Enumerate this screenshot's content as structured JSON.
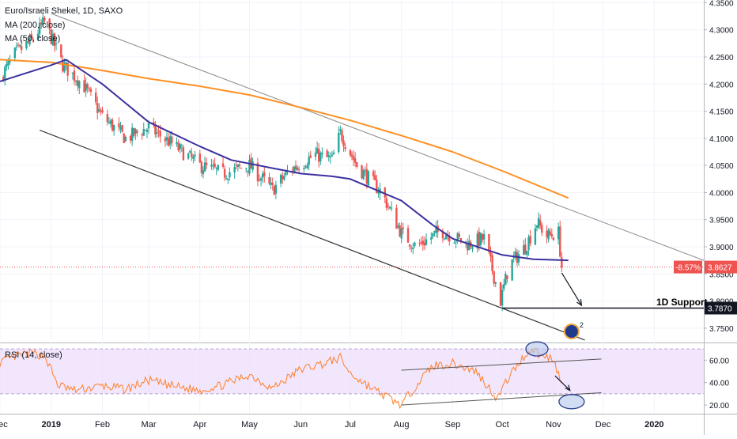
{
  "legend": {
    "title": "Euro/Israeli Shekel, 1D, SAXO",
    "ma200": "MA (200, close)",
    "ma50": "MA (50, close)"
  },
  "rsi_legend": "RSI (14, close)",
  "annotations": {
    "support_label": "1D Support",
    "support_value": "3.7870",
    "change_label": "-8.57%",
    "price_label": "3.8627",
    "badge_count": "2"
  },
  "colors": {
    "up": "#26a69a",
    "down": "#ef5350",
    "ma200": "#ff8f22",
    "ma50": "#3c32a0",
    "rsi": "#ff7f2a",
    "rsi_band": "#ecdcfb",
    "channel": "#555555",
    "price_label_bg": "#ef5350",
    "support_label_bg": "#131722"
  },
  "chart_data": [
    {
      "type": "candlestick",
      "title": "Euro/Israeli Shekel, 1D, SAXO",
      "y_axis_ticks": [
        "3.7500",
        "3.8000",
        "3.8500",
        "3.9000",
        "3.9500",
        "4.0000",
        "4.0500",
        "4.1000",
        "4.1500",
        "4.2000",
        "4.2500",
        "4.3000",
        "4.3500"
      ],
      "ylim": [
        3.725,
        4.355
      ],
      "x_axis_ticks": [
        "Dec",
        "2019",
        "Feb",
        "Mar",
        "Apr",
        "May",
        "Jun",
        "Jul",
        "Aug",
        "Sep",
        "Oct",
        "Nov",
        "Dec",
        "2020"
      ],
      "x_axis_tick_dates": [
        "2018-12-01",
        "2019-01-01",
        "2019-02-01",
        "2019-03-01",
        "2019-04-01",
        "2019-05-01",
        "2019-06-01",
        "2019-07-01",
        "2019-08-01",
        "2019-09-01",
        "2019-10-01",
        "2019-11-01",
        "2019-12-01",
        "2020-01-01"
      ],
      "xlim": [
        "2018-12-01",
        "2020-01-31"
      ],
      "close": {
        "dates": [
          "2018-12-01",
          "2018-12-10",
          "2018-12-20",
          "2018-12-28",
          "2019-01-08",
          "2019-01-20",
          "2019-02-01",
          "2019-02-15",
          "2019-03-01",
          "2019-03-15",
          "2019-04-01",
          "2019-04-15",
          "2019-05-01",
          "2019-05-15",
          "2019-05-25",
          "2019-06-10",
          "2019-06-20",
          "2019-06-25",
          "2019-07-05",
          "2019-07-20",
          "2019-08-01",
          "2019-08-10",
          "2019-08-25",
          "2019-09-10",
          "2019-09-20",
          "2019-09-30",
          "2019-10-05",
          "2019-10-15",
          "2019-10-22",
          "2019-10-28",
          "2019-11-04",
          "2019-11-06"
        ],
        "values": [
          4.21,
          4.255,
          4.28,
          4.315,
          4.235,
          4.2,
          4.14,
          4.1,
          4.12,
          4.09,
          4.05,
          4.035,
          4.05,
          4.005,
          4.04,
          4.07,
          4.06,
          4.11,
          4.05,
          4.0,
          3.925,
          3.9,
          3.93,
          3.905,
          3.915,
          3.8,
          3.865,
          3.9,
          3.945,
          3.92,
          3.925,
          3.8627
        ]
      },
      "series": [
        {
          "name": "MA (200, close)",
          "dates": [
            "2018-12-01",
            "2019-01-01",
            "2019-02-01",
            "2019-03-01",
            "2019-04-01",
            "2019-05-01",
            "2019-06-01",
            "2019-07-01",
            "2019-08-01",
            "2019-09-01",
            "2019-10-01",
            "2019-11-10"
          ],
          "values": [
            4.245,
            4.24,
            4.225,
            4.21,
            4.196,
            4.18,
            4.157,
            4.133,
            4.105,
            4.075,
            4.04,
            3.99
          ]
        },
        {
          "name": "MA (50, close)",
          "dates": [
            "2018-12-01",
            "2019-01-01",
            "2019-01-10",
            "2019-02-01",
            "2019-03-01",
            "2019-04-01",
            "2019-04-20",
            "2019-05-15",
            "2019-06-01",
            "2019-06-20",
            "2019-07-01",
            "2019-08-01",
            "2019-08-20",
            "2019-09-01",
            "2019-10-01",
            "2019-10-20",
            "2019-11-10"
          ],
          "values": [
            4.205,
            4.235,
            4.245,
            4.2,
            4.13,
            4.085,
            4.06,
            4.045,
            4.035,
            4.03,
            4.025,
            3.985,
            3.94,
            3.915,
            3.885,
            3.877,
            3.875
          ]
        }
      ],
      "trendlines": [
        {
          "name": "upper channel",
          "from": {
            "date": "2019-01-01",
            "value": 4.33
          },
          "to": {
            "date": "2020-01-31",
            "value": 3.875
          }
        },
        {
          "name": "lower channel",
          "from": {
            "date": "2018-12-25",
            "value": 4.115
          },
          "to": {
            "date": "2019-11-20",
            "value": 3.728
          }
        },
        {
          "name": "1D Support",
          "from": {
            "date": "2019-10-01",
            "value": 3.787
          },
          "to": {
            "date": "2020-01-31",
            "value": 3.787
          }
        }
      ],
      "horizontal_lines": [
        {
          "value": 3.8627,
          "style": "dotted"
        }
      ],
      "annotations": [
        "1D Support",
        "3.7870",
        "-8.57%",
        "3.8627"
      ],
      "grid": true
    },
    {
      "type": "line",
      "title": "RSI (14, close)",
      "y_axis_ticks": [
        "20.00",
        "40.00",
        "60.00"
      ],
      "ylim": [
        13,
        75
      ],
      "band": [
        30,
        70
      ],
      "x": [
        "2018-12-01",
        "2018-12-10",
        "2018-12-20",
        "2018-12-28",
        "2019-01-05",
        "2019-01-15",
        "2019-02-01",
        "2019-02-15",
        "2019-03-01",
        "2019-03-15",
        "2019-04-01",
        "2019-04-15",
        "2019-05-01",
        "2019-05-15",
        "2019-06-01",
        "2019-06-15",
        "2019-06-25",
        "2019-07-01",
        "2019-07-15",
        "2019-08-01",
        "2019-08-10",
        "2019-08-20",
        "2019-09-01",
        "2019-09-15",
        "2019-09-28",
        "2019-10-05",
        "2019-10-15",
        "2019-10-20",
        "2019-10-25",
        "2019-11-01",
        "2019-11-06"
      ],
      "values": [
        58,
        63,
        66,
        64,
        38,
        33,
        37,
        34,
        42,
        37,
        33,
        38,
        47,
        35,
        52,
        57,
        62,
        48,
        34,
        20,
        38,
        55,
        57,
        50,
        26,
        45,
        65,
        70,
        63,
        62,
        38
      ],
      "trendlines": [
        {
          "from": {
            "date": "2019-08-01",
            "value": 51
          },
          "to": {
            "date": "2019-11-30",
            "value": 61
          }
        },
        {
          "from": {
            "date": "2019-08-01",
            "value": 20
          },
          "to": {
            "date": "2019-11-30",
            "value": 31
          }
        }
      ],
      "grid": true
    }
  ]
}
